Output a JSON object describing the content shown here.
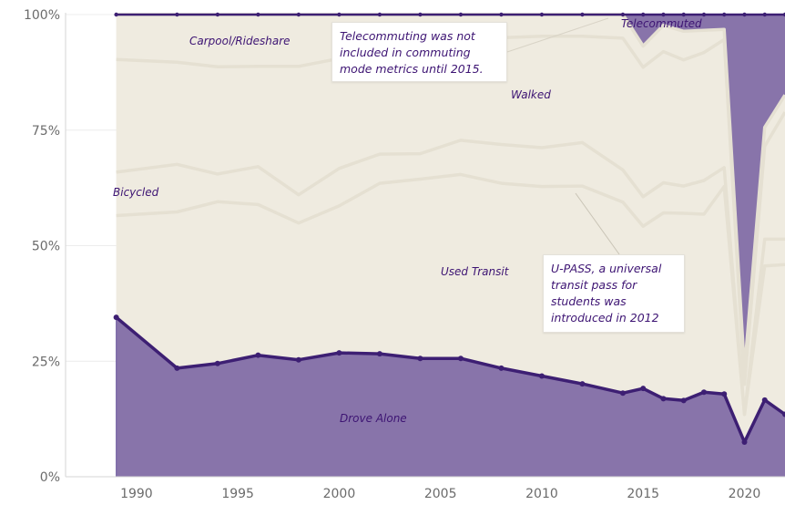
{
  "chart_data": {
    "type": "area",
    "stacked_percent": true,
    "x": [
      1989,
      1992,
      1994,
      1996,
      1998,
      2000,
      2002,
      2004,
      2006,
      2008,
      2010,
      2012,
      2014,
      2015,
      2016,
      2017,
      2018,
      2019,
      2020,
      2021,
      2022
    ],
    "series": [
      {
        "name": "Drove Alone",
        "values": [
          34.5,
          23.5,
          24.5,
          26.3,
          25.3,
          26.8,
          26.6,
          25.6,
          25.6,
          23.5,
          21.8,
          20.1,
          18.1,
          19.1,
          16.9,
          16.5,
          18.3,
          17.9,
          7.5,
          16.6,
          13.5
        ]
      },
      {
        "name": "Used Transit",
        "upper": [
          56.5,
          57.3,
          59.5,
          58.9,
          54.9,
          58.6,
          63.5,
          64.4,
          65.4,
          63.5,
          62.8,
          62.9,
          59.4,
          54.2,
          57.1,
          57.0,
          56.8,
          62.8,
          13.5,
          45.6,
          45.9
        ]
      },
      {
        "name": "Bicycled",
        "upper": [
          65.9,
          67.6,
          65.5,
          67.1,
          61.0,
          66.7,
          69.8,
          69.9,
          72.8,
          71.9,
          71.2,
          72.3,
          66.4,
          60.6,
          63.6,
          62.9,
          64.1,
          66.9,
          13.5,
          51.4,
          51.4
        ]
      },
      {
        "name": "Carpool/Rideshare",
        "upper": [
          90.3,
          89.7,
          88.7,
          88.8,
          88.8,
          90.5,
          95.5,
          94.2,
          96.1,
          95.0,
          95.3,
          95.3,
          94.9,
          88.6,
          92.0,
          90.2,
          91.8,
          94.6,
          20.0,
          71.5,
          78.9
        ]
      },
      {
        "name": "Walked",
        "upper": [
          100,
          100,
          100,
          100,
          100,
          100,
          100,
          100,
          100,
          100,
          100,
          100,
          100,
          93.2,
          97.7,
          96.4,
          96.6,
          96.8,
          23.0,
          75.6,
          82.6
        ]
      },
      {
        "name": "Telecommuted",
        "upper": [
          100,
          100,
          100,
          100,
          100,
          100,
          100,
          100,
          100,
          100,
          100,
          100,
          100,
          100,
          100,
          100,
          100,
          100,
          100,
          100,
          100
        ]
      }
    ],
    "ylim": [
      0,
      100
    ],
    "xlim": [
      1986.5,
      2022
    ],
    "y_ticks": [
      "0%",
      "25%",
      "50%",
      "75%",
      "100%"
    ],
    "y_tick_values": [
      0,
      25,
      50,
      75,
      100
    ],
    "x_ticks": [
      "1990",
      "1995",
      "2000",
      "2005",
      "2010",
      "2015",
      "2020"
    ],
    "x_tick_values": [
      1990,
      1995,
      2000,
      2005,
      2010,
      2015,
      2020
    ],
    "labels": [
      "Drove Alone",
      "Used Transit",
      "Bicycled",
      "Carpool/Rideshare",
      "Walked",
      "Telecommuted"
    ],
    "annotations": [
      {
        "text": "Telecommuting was not included in commuting mode metrics until 2015."
      },
      {
        "text": "U-PASS, a universal transit pass for students was introduced in 2012"
      }
    ],
    "grid": true,
    "colors": {
      "drove_alone": "#8874aa",
      "drove_alone_line": "#3d1f73",
      "other_modes": "#efebe0",
      "mode_lines": "#e5e0d2",
      "telecommuted": "#8874aa"
    }
  }
}
